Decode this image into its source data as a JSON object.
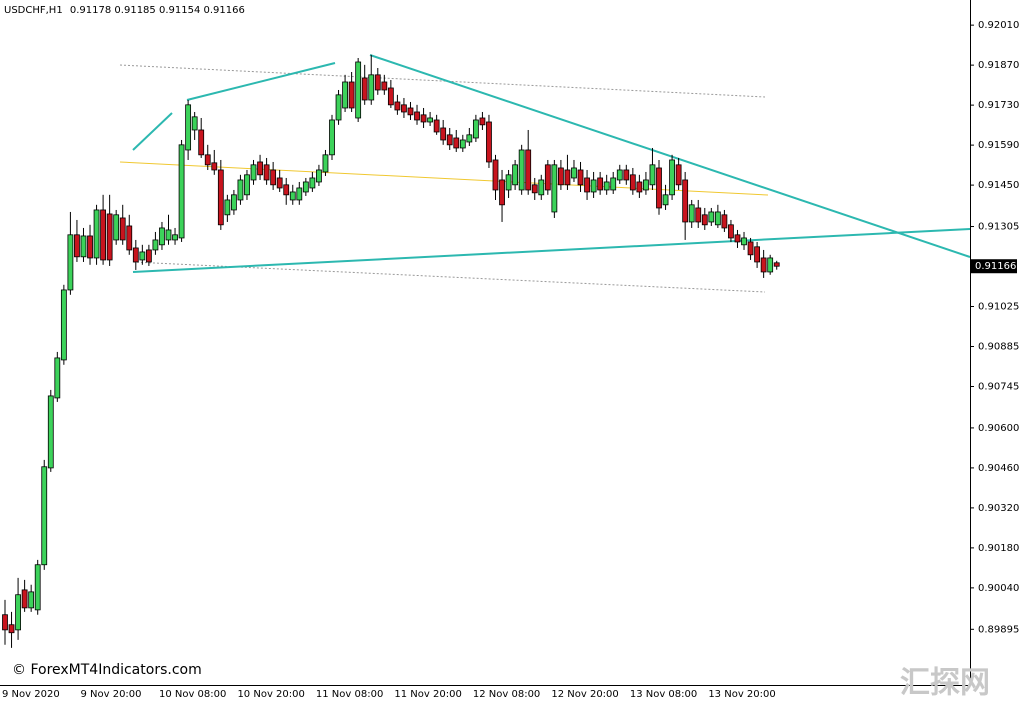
{
  "chart_data": {
    "type": "candlestick",
    "symbol": "USDCHF,H1",
    "watermark": "© ForexMT4Indicators.com",
    "logo": "汇探网",
    "up_color": "#3cd25a",
    "down_color": "#c8141e",
    "outline_color": "#000000",
    "categories": [
      "9 Nov 2020",
      null,
      null,
      null,
      null,
      null,
      null,
      null,
      null,
      null,
      null,
      null,
      "9 Nov 20:00",
      null,
      null,
      null,
      null,
      null,
      null,
      null,
      null,
      null,
      null,
      null,
      "10 Nov 08:00",
      null,
      null,
      null,
      null,
      null,
      null,
      null,
      null,
      null,
      null,
      null,
      "10 Nov 20:00",
      null,
      null,
      null,
      null,
      null,
      null,
      null,
      null,
      null,
      null,
      null,
      "11 Nov 08:00",
      null,
      null,
      null,
      null,
      null,
      null,
      null,
      null,
      null,
      null,
      null,
      "11 Nov 20:00",
      null,
      null,
      null,
      null,
      null,
      null,
      null,
      null,
      null,
      null,
      null,
      "12 Nov 08:00",
      null,
      null,
      null,
      null,
      null,
      null,
      null,
      null,
      null,
      null,
      null,
      "12 Nov 20:00",
      null,
      null,
      null,
      null,
      null,
      null,
      null,
      null,
      null,
      null,
      null,
      "13 Nov 08:00",
      null,
      null,
      null,
      null,
      null,
      null,
      null,
      null,
      null,
      null,
      null,
      "13 Nov 20:00",
      null,
      null,
      null,
      null,
      null,
      null,
      null,
      null,
      null,
      null
    ],
    "open": [
      0.89946,
      0.89911,
      0.89893,
      0.90033,
      0.8997,
      0.89963,
      0.90121,
      0.9046,
      0.90705,
      0.90838,
      0.91083,
      0.91276,
      0.91199,
      0.91272,
      0.91195,
      0.91363,
      0.91349,
      0.91258,
      0.91335,
      0.91307,
      0.9123,
      0.91188,
      0.91223,
      0.91223,
      0.91241,
      0.91258,
      0.91258,
      0.91265,
      0.91573,
      0.91643,
      0.91643,
      0.91556,
      0.91528,
      0.91503,
      0.91346,
      0.91363,
      0.91398,
      0.91416,
      0.91468,
      0.91531,
      0.91521,
      0.91503,
      0.91475,
      0.91451,
      0.91398,
      0.91398,
      0.91426,
      0.9144,
      0.91461,
      0.91496,
      0.91556,
      0.91678,
      0.9172,
      0.91811,
      0.91685,
      0.91825,
      0.91748,
      0.91836,
      0.91811,
      0.9179,
      0.91741,
      0.91731,
      0.9172,
      0.91706,
      0.91696,
      0.91671,
      0.91678,
      0.9165,
      0.91626,
      0.91615,
      0.9158,
      0.91601,
      0.91615,
      0.91685,
      0.91671,
      0.91538,
      0.91468,
      0.91433,
      0.91451,
      0.91433,
      0.91573,
      0.91451,
      0.91416,
      0.91521,
      0.91356,
      0.9151,
      0.91503,
      0.91475,
      0.91503,
      0.91475,
      0.91426,
      0.91475,
      0.91433,
      0.91433,
      0.91468,
      0.91503,
      0.91486,
      0.91461,
      0.91433,
      0.91451,
      0.9151,
      0.91381,
      0.91416,
      0.91521,
      0.91468,
      0.91321,
      0.9137,
      0.91346,
      0.91321,
      0.91311,
      0.91346,
      0.91311,
      0.91276,
      0.91241,
      0.91251,
      0.91234,
      0.91195,
      0.91146,
      0.91178
    ],
    "high": [
      0.89998,
      0.89956,
      0.90075,
      0.90068,
      0.90051,
      0.90138,
      0.90488,
      0.90733,
      0.90866,
      0.91101,
      0.91356,
      0.91328,
      0.913,
      0.91311,
      0.91381,
      0.91416,
      0.91416,
      0.91363,
      0.91381,
      0.91346,
      0.91258,
      0.91241,
      0.91241,
      0.91286,
      0.91321,
      0.91346,
      0.913,
      0.91608,
      0.91748,
      0.91706,
      0.91685,
      0.91591,
      0.91573,
      0.91538,
      0.91416,
      0.91433,
      0.91486,
      0.91503,
      0.91538,
      0.91556,
      0.91545,
      0.91531,
      0.91503,
      0.91475,
      0.91451,
      0.91461,
      0.91475,
      0.91496,
      0.91521,
      0.91573,
      0.91696,
      0.91783,
      0.91836,
      0.91846,
      0.91895,
      0.91871,
      0.91906,
      0.9186,
      0.91836,
      0.91818,
      0.91766,
      0.91755,
      0.91741,
      0.91731,
      0.9172,
      0.91706,
      0.91696,
      0.91678,
      0.9165,
      0.91643,
      0.91626,
      0.9165,
      0.91696,
      0.91706,
      0.91696,
      0.91556,
      0.91503,
      0.91503,
      0.91538,
      0.91591,
      0.91643,
      0.91475,
      0.91486,
      0.91538,
      0.91538,
      0.91538,
      0.91556,
      0.91538,
      0.91531,
      0.91503,
      0.91496,
      0.91496,
      0.91486,
      0.91496,
      0.91521,
      0.91521,
      0.9151,
      0.91486,
      0.91496,
      0.9158,
      0.91538,
      0.91451,
      0.91556,
      0.91545,
      0.91496,
      0.91398,
      0.91398,
      0.9137,
      0.9137,
      0.91381,
      0.91363,
      0.91328,
      0.91293,
      0.91286,
      0.91265,
      0.91251,
      0.91223,
      0.91206,
      0.91185
    ],
    "low": [
      0.89841,
      0.8983,
      0.89858,
      0.89956,
      0.89956,
      0.89946,
      0.90103,
      0.90446,
      0.90691,
      0.90821,
      0.91066,
      0.91181,
      0.91181,
      0.91171,
      0.91171,
      0.91171,
      0.91167,
      0.91241,
      0.91241,
      0.91206,
      0.91153,
      0.91171,
      0.91167,
      0.91206,
      0.91223,
      0.91241,
      0.91241,
      0.91251,
      0.91538,
      0.91608,
      0.91545,
      0.91503,
      0.91486,
      0.91293,
      0.91321,
      0.91346,
      0.91381,
      0.91398,
      0.91451,
      0.91468,
      0.91451,
      0.91433,
      0.91426,
      0.91381,
      0.91381,
      0.91381,
      0.91412,
      0.91426,
      0.91447,
      0.91482,
      0.91538,
      0.91661,
      0.91706,
      0.91706,
      0.91671,
      0.91731,
      0.91731,
      0.91766,
      0.91766,
      0.9172,
      0.91696,
      0.91685,
      0.91678,
      0.91661,
      0.9165,
      0.91657,
      0.91626,
      0.91591,
      0.91573,
      0.91566,
      0.91566,
      0.91587,
      0.91601,
      0.91643,
      0.9151,
      0.91398,
      0.91321,
      0.91405,
      0.91433,
      0.91416,
      0.91416,
      0.91398,
      0.91398,
      0.91416,
      0.91335,
      0.91433,
      0.91433,
      0.91461,
      0.91426,
      0.91398,
      0.91405,
      0.91416,
      0.91416,
      0.91419,
      0.91454,
      0.91451,
      0.91416,
      0.91405,
      0.91416,
      0.91433,
      0.91346,
      0.91363,
      0.91398,
      0.91433,
      0.91258,
      0.913,
      0.913,
      0.91293,
      0.91307,
      0.913,
      0.91286,
      0.91251,
      0.9123,
      0.91223,
      0.91188,
      0.9116,
      0.91125,
      0.91136,
      0.91154
    ],
    "close": [
      0.89893,
      0.89883,
      0.90016,
      0.8997,
      0.90026,
      0.90121,
      0.90464,
      0.90712,
      0.90845,
      0.91083,
      0.91276,
      0.91199,
      0.91272,
      0.91195,
      0.91363,
      0.91188,
      0.91188,
      0.91346,
      0.91258,
      0.91223,
      0.91181,
      0.91216,
      0.91181,
      0.91258,
      0.913,
      0.91293,
      0.91276,
      0.91591,
      0.91731,
      0.91689,
      0.91556,
      0.91521,
      0.91503,
      0.91311,
      0.91398,
      0.91416,
      0.91468,
      0.91486,
      0.91521,
      0.91486,
      0.91468,
      0.91451,
      0.9144,
      0.91416,
      0.91426,
      0.9144,
      0.91461,
      0.91475,
      0.91503,
      0.91556,
      0.91678,
      0.91766,
      0.91811,
      0.9172,
      0.91881,
      0.91748,
      0.91836,
      0.91783,
      0.91783,
      0.91731,
      0.91713,
      0.91706,
      0.91696,
      0.91678,
      0.91671,
      0.91685,
      0.91636,
      0.91608,
      0.91591,
      0.9158,
      0.91608,
      0.91626,
      0.91678,
      0.91661,
      0.91531,
      0.91433,
      0.91381,
      0.91486,
      0.91521,
      0.91573,
      0.91433,
      0.91423,
      0.91468,
      0.91433,
      0.91521,
      0.91451,
      0.91451,
      0.9151,
      0.91451,
      0.91426,
      0.91468,
      0.91433,
      0.91461,
      0.91475,
      0.91503,
      0.91468,
      0.91433,
      0.91426,
      0.91468,
      0.91521,
      0.9137,
      0.91416,
      0.91538,
      0.91451,
      0.91321,
      0.91381,
      0.91321,
      0.91311,
      0.91356,
      0.91356,
      0.913,
      0.91265,
      0.91251,
      0.91265,
      0.91206,
      0.91181,
      0.91146,
      0.91195,
      0.91166
    ],
    "ylim": [
      0.89707,
      0.92098
    ],
    "yticks": [
      {
        "value": 0.9201,
        "label": "0.92010"
      },
      {
        "value": 0.9187,
        "label": "0.91870"
      },
      {
        "value": 0.9173,
        "label": "0.91730"
      },
      {
        "value": 0.9159,
        "label": "0.91590"
      },
      {
        "value": 0.9145,
        "label": "0.91450"
      },
      {
        "value": 0.91305,
        "label": "0.91305"
      },
      {
        "value": 0.91025,
        "label": "0.91025"
      },
      {
        "value": 0.90885,
        "label": "0.90885"
      },
      {
        "value": 0.90745,
        "label": "0.90745"
      },
      {
        "value": 0.906,
        "label": "0.90600"
      },
      {
        "value": 0.9046,
        "label": "0.90460"
      },
      {
        "value": 0.9032,
        "label": "0.90320"
      },
      {
        "value": 0.9018,
        "label": "0.90180"
      },
      {
        "value": 0.9004,
        "label": "0.90040"
      },
      {
        "value": 0.89895,
        "label": "0.89895"
      }
    ],
    "grid": false
  }
}
